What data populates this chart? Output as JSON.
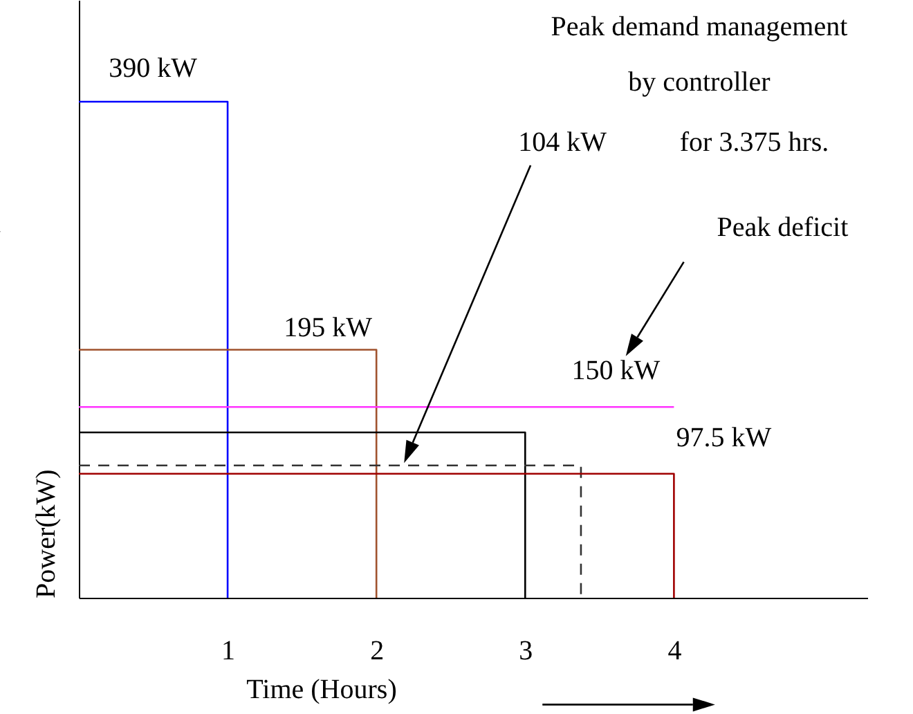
{
  "chart_data": {
    "type": "line",
    "xlabel": "Time (Hours)",
    "ylabel": "Power(kW)",
    "xlim": [
      0,
      5.3
    ],
    "xticks": [
      1,
      2,
      3,
      4
    ],
    "ylim": [
      0,
      470
    ],
    "tick_labels": "x",
    "series": [
      {
        "color": "#0000ff",
        "x": [
          0,
          1,
          1
        ],
        "values": [
          390,
          390,
          0
        ],
        "value_labels": [
          null,
          "390 kW",
          null
        ]
      },
      {
        "color": "#a0522d",
        "x": [
          0,
          2,
          2
        ],
        "values": [
          195,
          195,
          0
        ],
        "value_labels": [
          null,
          "195 kW",
          null
        ]
      },
      {
        "color": "#ff33ff",
        "x": [
          0,
          4
        ],
        "values": [
          150,
          150
        ],
        "value_labels": [
          null,
          "150 kW"
        ]
      },
      {
        "color": "#000000",
        "x": [
          0,
          3,
          3
        ],
        "values": [
          130,
          130,
          0
        ]
      },
      {
        "color": "#333333",
        "line_style": "dashed",
        "x": [
          0,
          3.375,
          3.375
        ],
        "values": [
          104,
          104,
          0
        ]
      },
      {
        "color": "#a00000",
        "x": [
          0,
          4,
          4
        ],
        "values": [
          97.5,
          97.5,
          0
        ],
        "value_labels": [
          null,
          "97.5 kW",
          null
        ]
      }
    ],
    "annotations": [
      "Peak demand management by controller",
      "104 kW",
      "for 3.375 hrs.",
      "Peak deficit"
    ]
  }
}
